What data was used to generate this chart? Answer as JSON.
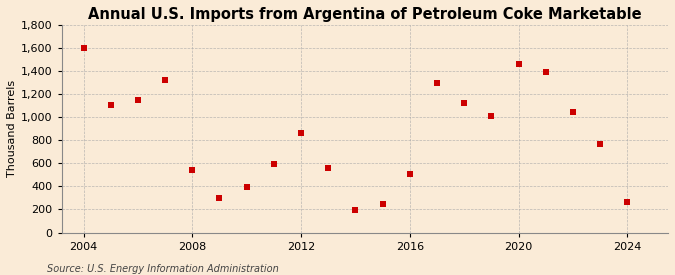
{
  "years": [
    2004,
    2005,
    2006,
    2007,
    2008,
    2009,
    2010,
    2011,
    2012,
    2013,
    2014,
    2015,
    2016,
    2017,
    2018,
    2019,
    2020,
    2021,
    2022,
    2023,
    2024
  ],
  "values": [
    1600,
    1100,
    1150,
    1320,
    540,
    300,
    395,
    590,
    860,
    555,
    195,
    250,
    510,
    1290,
    1120,
    1010,
    1460,
    1390,
    1040,
    770,
    260
  ],
  "title": "Annual U.S. Imports from Argentina of Petroleum Coke Marketable",
  "ylabel": "Thousand Barrels",
  "source": "Source: U.S. Energy Information Administration",
  "marker_color": "#cc0000",
  "marker_size": 5,
  "background_color": "#faebd7",
  "grid_color": "#aaaaaa",
  "ylim": [
    0,
    1800
  ],
  "yticks": [
    0,
    200,
    400,
    600,
    800,
    1000,
    1200,
    1400,
    1600,
    1800
  ],
  "xticks": [
    2004,
    2008,
    2012,
    2016,
    2020,
    2024
  ],
  "xlim_left": 2003.2,
  "xlim_right": 2025.5,
  "title_fontsize": 10.5,
  "label_fontsize": 8,
  "tick_fontsize": 8,
  "source_fontsize": 7
}
